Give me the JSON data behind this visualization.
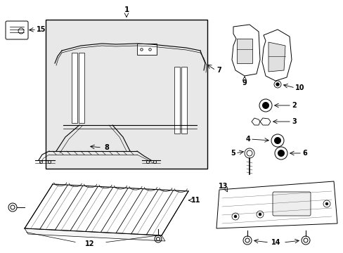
{
  "bg_color": "#ffffff",
  "line_color": "#000000",
  "box_fill": "#e8e8e8",
  "fig_width": 4.89,
  "fig_height": 3.6,
  "dpi": 100
}
